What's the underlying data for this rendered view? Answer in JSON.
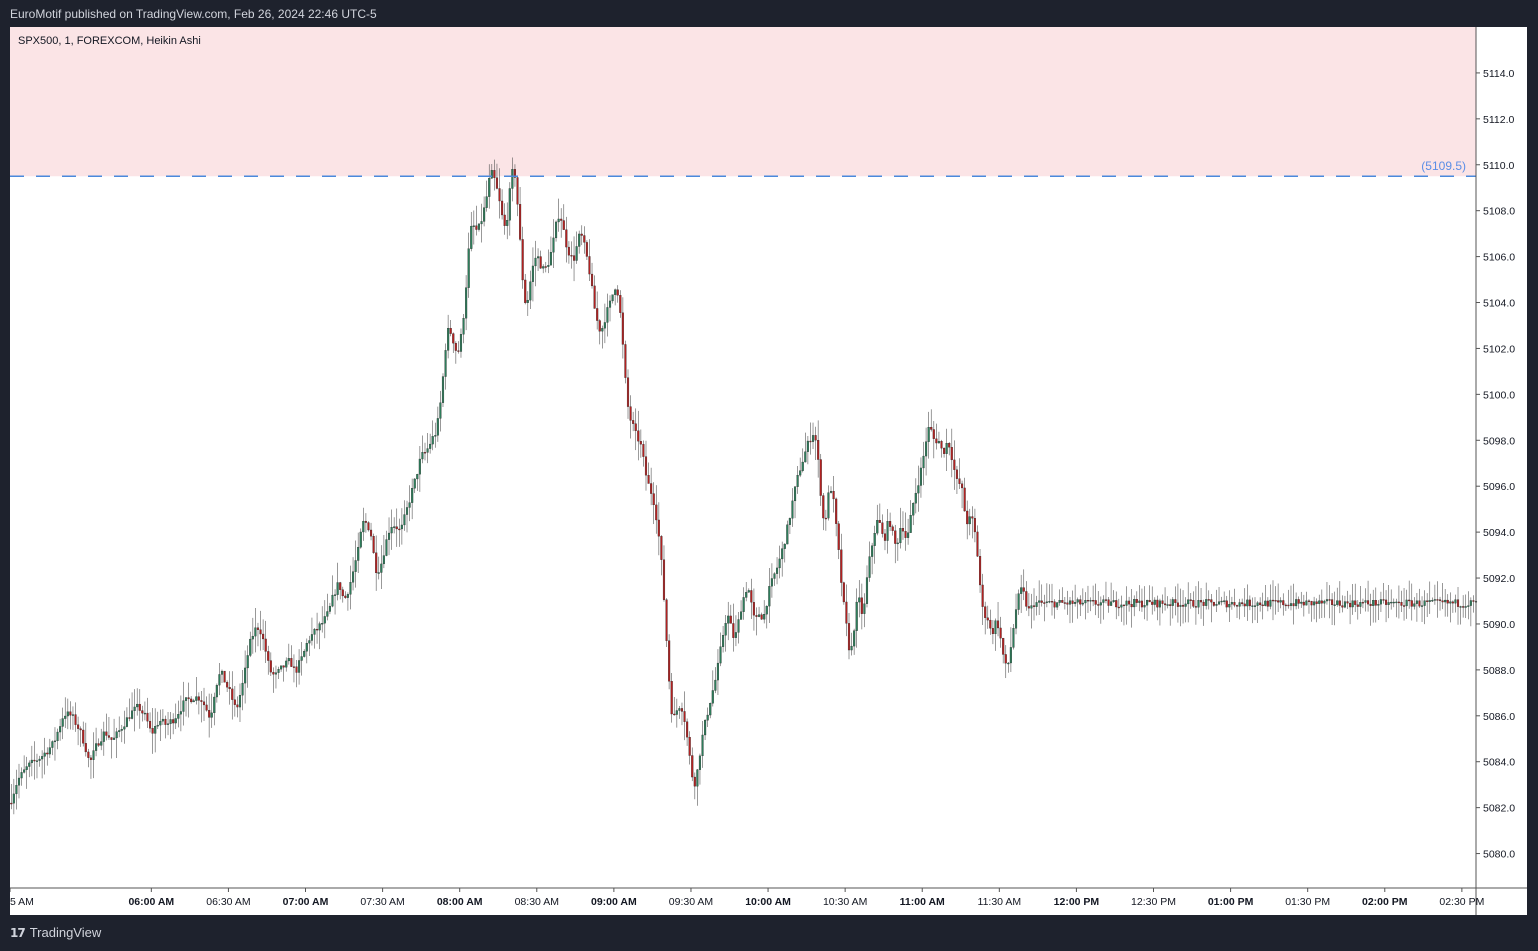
{
  "header": {
    "published_text": "EuroMotif published on TradingView.com, Feb 26, 2024 22:46 UTC-5"
  },
  "footer": {
    "brand_label": "TradingView",
    "logo_icon": "tradingview-logo-icon"
  },
  "colors": {
    "up": "#26a69a",
    "up_body": "#2e7d5b",
    "down_body": "#b22222",
    "wick": "#555555",
    "zone_fill": "#fbe4e6",
    "level_line": "#4a89dc",
    "axis_text": "#131722",
    "price_label": "#5b8ee6"
  },
  "chart_data": {
    "type": "candlestick",
    "symbol_label": "SPX500, 1, FOREXCOM, Heikin Ashi",
    "chart_style": "Heikin Ashi",
    "interval": "1 minute",
    "ylim": [
      5078.5,
      5116.0
    ],
    "y_ticks": [
      "5080.0",
      "5082.0",
      "5084.0",
      "5086.0",
      "5088.0",
      "5090.0",
      "5092.0",
      "5094.0",
      "5096.0",
      "5098.0",
      "5100.0",
      "5102.0",
      "5104.0",
      "5106.0",
      "5108.0",
      "5110.0",
      "5112.0",
      "5114.0"
    ],
    "x_ticks": [
      {
        "label": "5 AM",
        "minutes": 305,
        "bold": false
      },
      {
        "label": "06:00 AM",
        "minutes": 360,
        "bold": true
      },
      {
        "label": "06:30 AM",
        "minutes": 390,
        "bold": false
      },
      {
        "label": "07:00 AM",
        "minutes": 420,
        "bold": true
      },
      {
        "label": "07:30 AM",
        "minutes": 450,
        "bold": false
      },
      {
        "label": "08:00 AM",
        "minutes": 480,
        "bold": true
      },
      {
        "label": "08:30 AM",
        "minutes": 510,
        "bold": false
      },
      {
        "label": "09:00 AM",
        "minutes": 540,
        "bold": true
      },
      {
        "label": "09:30 AM",
        "minutes": 570,
        "bold": false
      },
      {
        "label": "10:00 AM",
        "minutes": 600,
        "bold": true
      },
      {
        "label": "10:30 AM",
        "minutes": 630,
        "bold": false
      },
      {
        "label": "11:00 AM",
        "minutes": 660,
        "bold": true
      },
      {
        "label": "11:30 AM",
        "minutes": 690,
        "bold": false
      },
      {
        "label": "12:00 PM",
        "minutes": 720,
        "bold": true
      },
      {
        "label": "12:30 PM",
        "minutes": 750,
        "bold": false
      },
      {
        "label": "01:00 PM",
        "minutes": 780,
        "bold": true
      },
      {
        "label": "01:30 PM",
        "minutes": 810,
        "bold": false
      },
      {
        "label": "02:00 PM",
        "minutes": 840,
        "bold": true
      },
      {
        "label": "02:30 PM",
        "minutes": 870,
        "bold": false
      }
    ],
    "x_range_minutes": [
      305,
      875.5
    ],
    "resistance_zone": {
      "from": 5109.5,
      "to": 5116.0
    },
    "level_line": {
      "value": 5109.5,
      "label": "(5109.5)"
    },
    "close_path": [
      [
        305,
        5082.2
      ],
      [
        308,
        5083.2
      ],
      [
        312,
        5083.8
      ],
      [
        318,
        5084.3
      ],
      [
        322,
        5084.8
      ],
      [
        326,
        5086.1
      ],
      [
        329,
        5086.0
      ],
      [
        332,
        5085.4
      ],
      [
        334,
        5084.8
      ],
      [
        336,
        5083.9
      ],
      [
        339,
        5084.8
      ],
      [
        342,
        5085.3
      ],
      [
        345,
        5084.9
      ],
      [
        349,
        5085.6
      ],
      [
        352,
        5086.1
      ],
      [
        355,
        5086.4
      ],
      [
        358,
        5085.9
      ],
      [
        360,
        5085.2
      ],
      [
        363,
        5085.8
      ],
      [
        366,
        5085.6
      ],
      [
        369,
        5085.9
      ],
      [
        373,
        5086.6
      ],
      [
        376,
        5086.8
      ],
      [
        379,
        5086.8
      ],
      [
        381,
        5086.4
      ],
      [
        383,
        5085.9
      ],
      [
        385,
        5087.3
      ],
      [
        387,
        5087.9
      ],
      [
        389,
        5087.4
      ],
      [
        391,
        5086.9
      ],
      [
        393,
        5086.2
      ],
      [
        396,
        5087.6
      ],
      [
        398,
        5089.0
      ],
      [
        400,
        5089.7
      ],
      [
        402,
        5089.9
      ],
      [
        404,
        5089.1
      ],
      [
        406,
        5088.0
      ],
      [
        408,
        5087.7
      ],
      [
        411,
        5088.1
      ],
      [
        414,
        5088.4
      ],
      [
        416,
        5087.9
      ],
      [
        419,
        5088.6
      ],
      [
        421,
        5089.3
      ],
      [
        424,
        5089.7
      ],
      [
        427,
        5090.1
      ],
      [
        429,
        5090.5
      ],
      [
        431,
        5091.3
      ],
      [
        433,
        5091.8
      ],
      [
        435,
        5091.0
      ],
      [
        437,
        5091.6
      ],
      [
        439,
        5092.5
      ],
      [
        441,
        5093.4
      ],
      [
        442,
        5094.4
      ],
      [
        444,
        5094.4
      ],
      [
        446,
        5093.7
      ],
      [
        447,
        5092.4
      ],
      [
        449,
        5092.4
      ],
      [
        451,
        5093.4
      ],
      [
        453,
        5094.3
      ],
      [
        455,
        5094.3
      ],
      [
        457,
        5094.0
      ],
      [
        459,
        5094.8
      ],
      [
        461,
        5095.6
      ],
      [
        463,
        5096.4
      ],
      [
        465,
        5097.3
      ],
      [
        467,
        5097.5
      ],
      [
        469,
        5098.0
      ],
      [
        471,
        5098.4
      ],
      [
        473,
        5100.0
      ],
      [
        474,
        5101.5
      ],
      [
        475,
        5102.6
      ],
      [
        476,
        5102.9
      ],
      [
        477,
        5102.5
      ],
      [
        478,
        5102.2
      ],
      [
        479,
        5101.7
      ],
      [
        480,
        5102.1
      ],
      [
        481,
        5102.9
      ],
      [
        482,
        5104.0
      ],
      [
        483,
        5105.5
      ],
      [
        484,
        5107.0
      ],
      [
        485,
        5107.4
      ],
      [
        486,
        5107.2
      ],
      [
        487,
        5107.1
      ],
      [
        488,
        5107.4
      ],
      [
        489,
        5107.8
      ],
      [
        490,
        5108.3
      ],
      [
        491,
        5108.9
      ],
      [
        492,
        5109.7
      ],
      [
        493,
        5109.5
      ],
      [
        494,
        5109.2
      ],
      [
        495,
        5108.6
      ],
      [
        496,
        5108.1
      ],
      [
        497,
        5107.4
      ],
      [
        498,
        5107.2
      ],
      [
        499,
        5108.3
      ],
      [
        500,
        5109.3
      ],
      [
        501,
        5110.0
      ],
      [
        502,
        5109.1
      ],
      [
        503,
        5107.5
      ],
      [
        504,
        5105.8
      ],
      [
        505,
        5104.3
      ],
      [
        506,
        5103.8
      ],
      [
        507,
        5104.5
      ],
      [
        508,
        5105.3
      ],
      [
        509,
        5105.8
      ],
      [
        510,
        5106.1
      ],
      [
        511,
        5105.8
      ],
      [
        512,
        5105.5
      ],
      [
        513,
        5105.4
      ],
      [
        514,
        5105.6
      ],
      [
        515,
        5105.9
      ],
      [
        516,
        5106.4
      ],
      [
        517,
        5107.0
      ],
      [
        518,
        5107.7
      ],
      [
        519,
        5107.9
      ],
      [
        520,
        5107.4
      ],
      [
        521,
        5106.8
      ],
      [
        522,
        5106.3
      ],
      [
        523,
        5106.1
      ],
      [
        524,
        5105.8
      ],
      [
        525,
        5106.1
      ],
      [
        526,
        5106.7
      ],
      [
        527,
        5107.0
      ],
      [
        528,
        5106.7
      ],
      [
        529,
        5106.2
      ],
      [
        530,
        5105.7
      ],
      [
        531,
        5105.0
      ],
      [
        532,
        5104.1
      ],
      [
        533,
        5103.4
      ],
      [
        534,
        5103.0
      ],
      [
        535,
        5102.7
      ],
      [
        536,
        5103.1
      ],
      [
        537,
        5103.5
      ],
      [
        538,
        5103.8
      ],
      [
        539,
        5104.1
      ],
      [
        540,
        5104.6
      ],
      [
        541,
        5104.8
      ],
      [
        542,
        5104.1
      ],
      [
        543,
        5102.9
      ],
      [
        544,
        5101.3
      ],
      [
        545,
        5099.9
      ],
      [
        546,
        5099.0
      ],
      [
        547,
        5098.8
      ],
      [
        548,
        5098.4
      ],
      [
        549,
        5098.1
      ],
      [
        550,
        5098.0
      ],
      [
        551,
        5097.5
      ],
      [
        552,
        5096.8
      ],
      [
        553,
        5096.2
      ],
      [
        554,
        5095.9
      ],
      [
        555,
        5095.6
      ],
      [
        556,
        5095.1
      ],
      [
        557,
        5094.3
      ],
      [
        558,
        5093.3
      ],
      [
        559,
        5092.0
      ],
      [
        560,
        5090.2
      ],
      [
        561,
        5088.4
      ],
      [
        562,
        5086.7
      ],
      [
        563,
        5085.8
      ],
      [
        564,
        5086.1
      ],
      [
        565,
        5086.4
      ],
      [
        566,
        5086.5
      ],
      [
        567,
        5086.2
      ],
      [
        568,
        5085.5
      ],
      [
        569,
        5084.6
      ],
      [
        570,
        5083.8
      ],
      [
        571,
        5083.0
      ],
      [
        572,
        5083.2
      ],
      [
        573,
        5084.0
      ],
      [
        574,
        5084.8
      ],
      [
        575,
        5085.4
      ],
      [
        576,
        5085.9
      ],
      [
        577,
        5086.4
      ],
      [
        578,
        5086.9
      ],
      [
        579,
        5087.3
      ],
      [
        580,
        5087.8
      ],
      [
        581,
        5088.5
      ],
      [
        582,
        5089.2
      ],
      [
        583,
        5089.9
      ],
      [
        584,
        5090.4
      ],
      [
        585,
        5090.2
      ],
      [
        586,
        5089.6
      ],
      [
        587,
        5089.3
      ],
      [
        588,
        5089.8
      ],
      [
        589,
        5090.4
      ],
      [
        590,
        5091.0
      ],
      [
        591,
        5091.3
      ],
      [
        592,
        5091.7
      ],
      [
        593,
        5091.2
      ],
      [
        594,
        5090.5
      ],
      [
        595,
        5090.0
      ],
      [
        596,
        5090.4
      ],
      [
        597,
        5090.5
      ],
      [
        598,
        5090.2
      ],
      [
        599,
        5090.6
      ],
      [
        600,
        5091.3
      ],
      [
        602,
        5092.0
      ],
      [
        604,
        5092.6
      ],
      [
        606,
        5093.4
      ],
      [
        608,
        5094.4
      ],
      [
        610,
        5095.6
      ],
      [
        612,
        5096.6
      ],
      [
        614,
        5097.3
      ],
      [
        616,
        5098.0
      ],
      [
        618,
        5098.4
      ],
      [
        619,
        5097.6
      ],
      [
        620,
        5096.5
      ],
      [
        621,
        5095.0
      ],
      [
        622,
        5094.2
      ],
      [
        623,
        5095.2
      ],
      [
        624,
        5096.0
      ],
      [
        625,
        5095.8
      ],
      [
        626,
        5094.8
      ],
      [
        627,
        5093.7
      ],
      [
        628,
        5092.5
      ],
      [
        629,
        5091.2
      ],
      [
        630,
        5090.4
      ],
      [
        631,
        5089.4
      ],
      [
        632,
        5088.6
      ],
      [
        633,
        5089.3
      ],
      [
        634,
        5090.4
      ],
      [
        635,
        5091.2
      ],
      [
        636,
        5090.8
      ],
      [
        637,
        5090.2
      ],
      [
        638,
        5091.4
      ],
      [
        639,
        5092.5
      ],
      [
        640,
        5093.1
      ],
      [
        641,
        5093.8
      ],
      [
        642,
        5094.3
      ],
      [
        643,
        5094.6
      ],
      [
        644,
        5094.1
      ],
      [
        645,
        5093.6
      ],
      [
        646,
        5094.0
      ],
      [
        647,
        5094.6
      ],
      [
        648,
        5094.2
      ],
      [
        649,
        5093.6
      ],
      [
        650,
        5093.3
      ],
      [
        651,
        5094.0
      ],
      [
        652,
        5094.4
      ],
      [
        653,
        5094.0
      ],
      [
        654,
        5093.6
      ],
      [
        655,
        5094.2
      ],
      [
        656,
        5095.0
      ],
      [
        657,
        5095.5
      ],
      [
        658,
        5096.0
      ],
      [
        659,
        5096.4
      ],
      [
        660,
        5097.0
      ],
      [
        661,
        5097.6
      ],
      [
        662,
        5098.4
      ],
      [
        663,
        5098.6
      ],
      [
        664,
        5098.2
      ],
      [
        665,
        5097.9
      ],
      [
        666,
        5098.1
      ],
      [
        667,
        5097.8
      ],
      [
        668,
        5097.4
      ],
      [
        669,
        5097.7
      ],
      [
        670,
        5098.0
      ],
      [
        671,
        5097.6
      ],
      [
        672,
        5097.0
      ],
      [
        673,
        5096.4
      ],
      [
        674,
        5096.0
      ],
      [
        675,
        5096.2
      ],
      [
        676,
        5095.4
      ],
      [
        677,
        5094.5
      ],
      [
        678,
        5094.4
      ],
      [
        679,
        5094.7
      ],
      [
        680,
        5094.3
      ],
      [
        681,
        5093.6
      ],
      [
        682,
        5092.4
      ],
      [
        683,
        5091.0
      ],
      [
        684,
        5090.3
      ],
      [
        685,
        5090.5
      ],
      [
        686,
        5090.0
      ],
      [
        687,
        5089.5
      ],
      [
        688,
        5089.9
      ],
      [
        689,
        5090.2
      ],
      [
        690,
        5089.7
      ],
      [
        691,
        5089.0
      ],
      [
        692,
        5088.3
      ],
      [
        693,
        5088.0
      ],
      [
        694,
        5088.6
      ],
      [
        695,
        5089.4
      ],
      [
        696,
        5090.3
      ],
      [
        697,
        5091.0
      ],
      [
        698,
        5091.3
      ],
      [
        699,
        5091.6
      ],
      [
        700,
        5091.0
      ],
      [
        701,
        5090.7
      ],
      [
        702,
        5090.5
      ],
      [
        703,
        5090.9
      ]
    ]
  }
}
